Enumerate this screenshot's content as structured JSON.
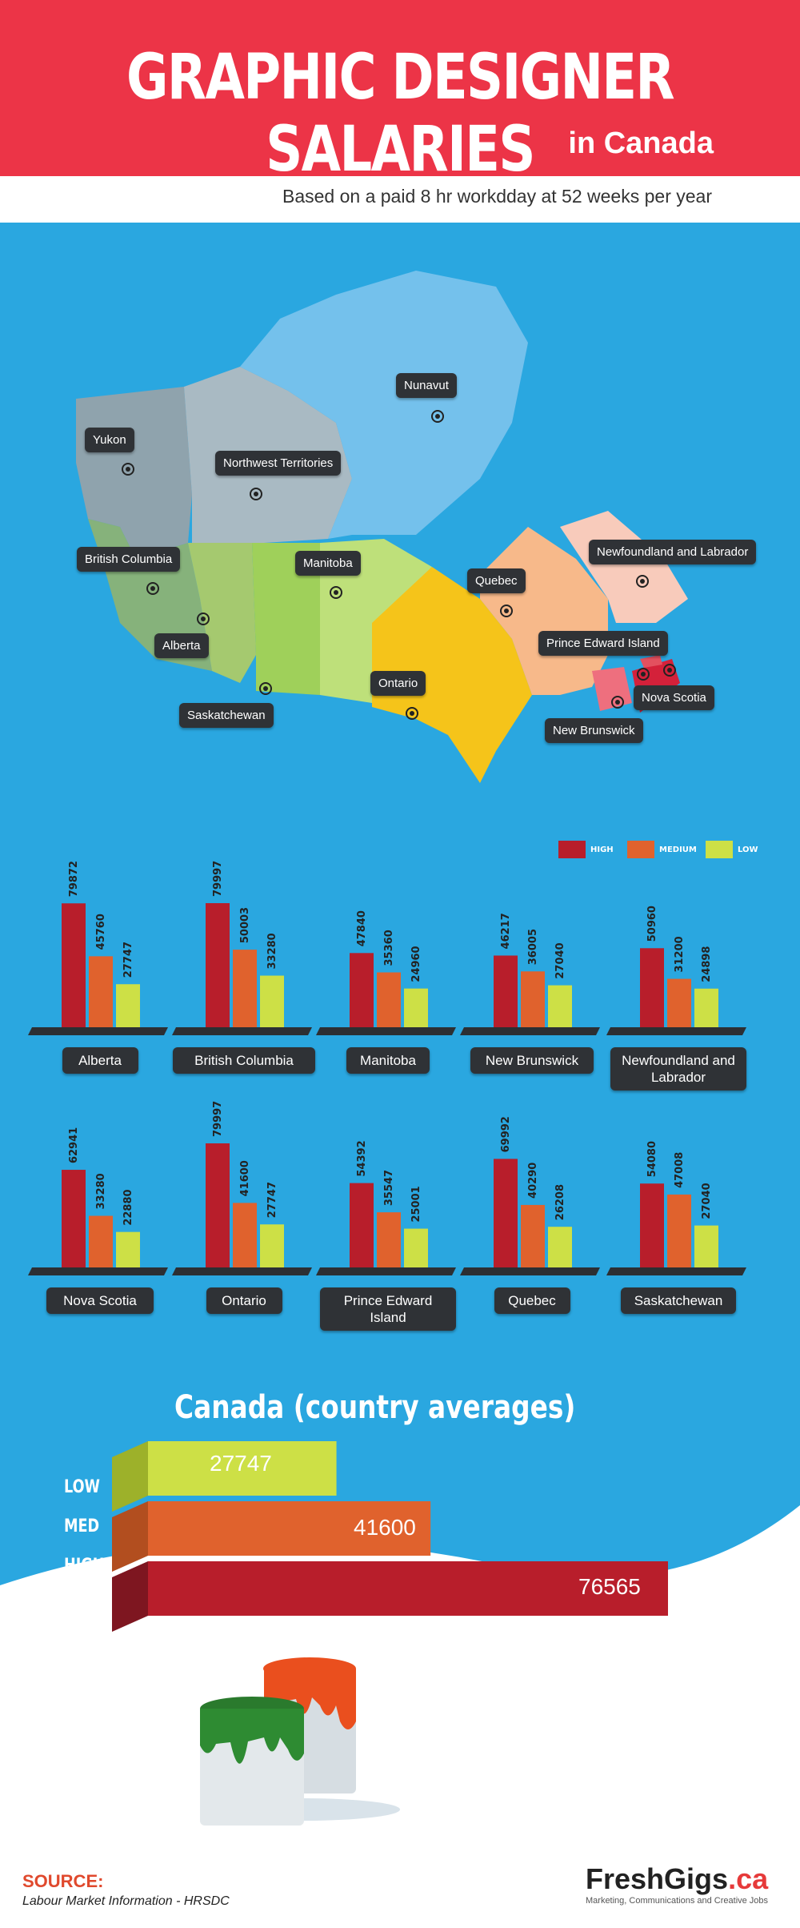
{
  "header": {
    "title": "GRAPHIC DESIGNER SALARIES",
    "subtitle": "in Canada",
    "note": "Based on a paid 8 hr workdday at 52 weeks per year"
  },
  "colors": {
    "high": "#b81e2b",
    "medium": "#e0622d",
    "low": "#cde046",
    "header": "#ec3447",
    "background": "#2aa7e0"
  },
  "map_labels": [
    "Yukon",
    "Northwest Territories",
    "Nunavut",
    "British Columbia",
    "Alberta",
    "Saskatchewan",
    "Manitoba",
    "Ontario",
    "Quebec",
    "Newfoundland and Labrador",
    "Prince Edward Island",
    "Nova Scotia",
    "New Brunswick"
  ],
  "legend": {
    "high": "HIGH",
    "medium": "MEDIUM",
    "low": "LOW"
  },
  "chart_data": {
    "type": "bar",
    "series_names": [
      "HIGH",
      "MEDIUM",
      "LOW"
    ],
    "provinces": [
      {
        "name": "Alberta",
        "values": [
          79872,
          45760,
          27747
        ]
      },
      {
        "name": "British Columbia",
        "values": [
          79997,
          50003,
          33280
        ]
      },
      {
        "name": "Manitoba",
        "values": [
          47840,
          35360,
          24960
        ]
      },
      {
        "name": "New Brunswick",
        "values": [
          46217,
          36005,
          27040
        ]
      },
      {
        "name": "Newfoundland and Labrador",
        "values": [
          50960,
          31200,
          24898
        ]
      },
      {
        "name": "Nova Scotia",
        "values": [
          62941,
          33280,
          22880
        ]
      },
      {
        "name": "Ontario",
        "values": [
          79997,
          41600,
          27747
        ]
      },
      {
        "name": "Prince Edward Island",
        "values": [
          54392,
          35547,
          25001
        ]
      },
      {
        "name": "Quebec",
        "values": [
          69992,
          40290,
          26208
        ]
      },
      {
        "name": "Saskatchewan",
        "values": [
          54080,
          47008,
          27040
        ]
      }
    ],
    "averages": {
      "title": "Canada (country averages)",
      "labels": [
        "LOW",
        "MED",
        "HIGH"
      ],
      "values": [
        27747,
        41600,
        76565
      ]
    }
  },
  "source": {
    "heading": "SOURCE:",
    "text": "Labour Market Information - HRSDC"
  },
  "brand": {
    "name": "FreshGigs",
    "tld": ".ca",
    "tagline": "Marketing, Communications and Creative Jobs"
  }
}
